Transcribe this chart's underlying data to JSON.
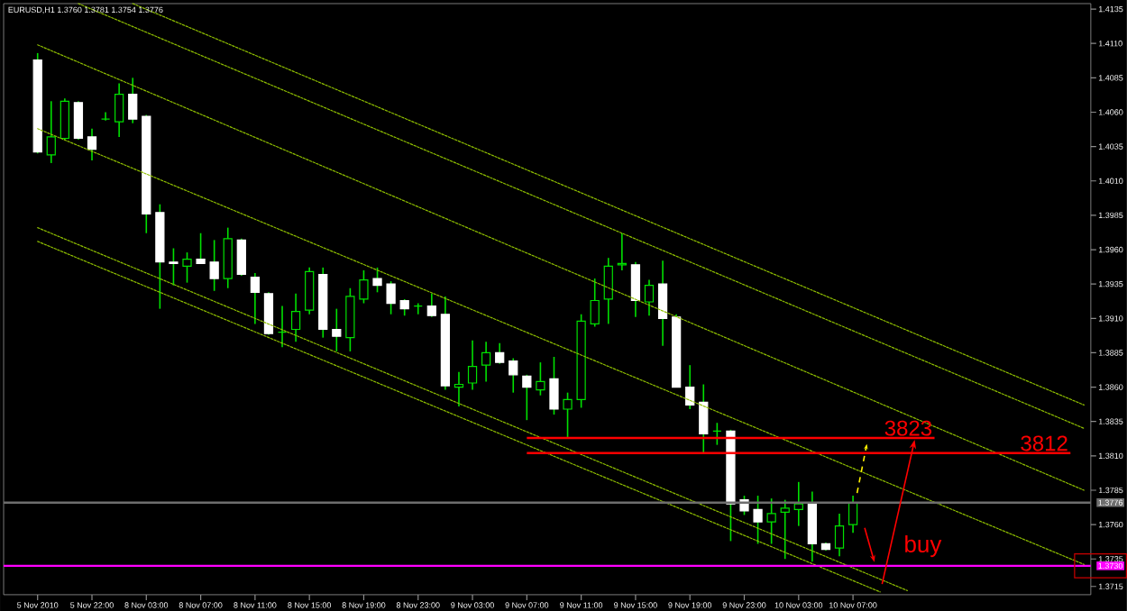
{
  "chart_data": {
    "type": "candlestick",
    "title": "EURUSD,H1 1.3760 1.3781 1.3754 1.3776",
    "categories": [
      "5 Nov 2010",
      null,
      null,
      null,
      "5 Nov 22:00",
      null,
      null,
      null,
      "8 Nov 03:00",
      null,
      null,
      null,
      "8 Nov 07:00",
      null,
      null,
      null,
      "8 Nov 11:00",
      null,
      null,
      null,
      "8 Nov 15:00",
      null,
      null,
      null,
      "8 Nov 19:00",
      null,
      null,
      null,
      "8 Nov 23:00",
      null,
      null,
      null,
      "9 Nov 03:00",
      null,
      null,
      null,
      "9 Nov 07:00",
      null,
      null,
      null,
      "9 Nov 11:00",
      null,
      null,
      null,
      "9 Nov 15:00",
      null,
      null,
      null,
      "9 Nov 19:00",
      null,
      null,
      null,
      "9 Nov 23:00",
      null,
      null,
      null,
      "10 Nov 03:00",
      null,
      null,
      null,
      "10 Nov 07:00",
      null,
      null,
      null,
      null,
      null,
      null,
      null,
      null,
      null,
      null,
      null,
      null,
      null,
      null,
      null,
      null,
      null
    ],
    "ohlc": [
      [
        1.4098,
        1.4103,
        1.403,
        1.4031
      ],
      [
        1.4029,
        1.4068,
        1.4023,
        1.4042
      ],
      [
        1.4041,
        1.407,
        1.404,
        1.4068
      ],
      [
        1.4067,
        1.4068,
        1.404,
        1.4041
      ],
      [
        1.4042,
        1.4048,
        1.4025,
        1.4033
      ],
      [
        1.4055,
        1.406,
        1.4054,
        1.4055
      ],
      [
        1.4053,
        1.4081,
        1.4042,
        1.4073
      ],
      [
        1.4073,
        1.4085,
        1.4052,
        1.4055
      ],
      [
        1.4057,
        1.4058,
        1.3972,
        1.3986
      ],
      [
        1.3987,
        1.3993,
        1.3917,
        1.3951
      ],
      [
        1.3951,
        1.3961,
        1.3934,
        1.395
      ],
      [
        1.3948,
        1.3958,
        1.3936,
        1.3953
      ],
      [
        1.3953,
        1.3972,
        1.395,
        1.395
      ],
      [
        1.3951,
        1.3967,
        1.393,
        1.3939
      ],
      [
        1.3939,
        1.3976,
        1.3932,
        1.3968
      ],
      [
        1.3967,
        1.3968,
        1.3941,
        1.3942
      ],
      [
        1.394,
        1.3943,
        1.3906,
        1.3929
      ],
      [
        1.3928,
        1.3929,
        1.3898,
        1.3899
      ],
      [
        1.39,
        1.3919,
        1.3889,
        1.39
      ],
      [
        1.3902,
        1.3928,
        1.3893,
        1.3915
      ],
      [
        1.3916,
        1.3947,
        1.3913,
        1.3944
      ],
      [
        1.3942,
        1.3947,
        1.3896,
        1.3902
      ],
      [
        1.3902,
        1.3917,
        1.3886,
        1.3897
      ],
      [
        1.3896,
        1.3932,
        1.3886,
        1.3926
      ],
      [
        1.3924,
        1.3945,
        1.3921,
        1.3938
      ],
      [
        1.3939,
        1.3947,
        1.3929,
        1.3934
      ],
      [
        1.3935,
        1.3937,
        1.3913,
        1.3921
      ],
      [
        1.3923,
        1.3924,
        1.3912,
        1.3917
      ],
      [
        1.3919,
        1.3921,
        1.3913,
        1.3919
      ],
      [
        1.3919,
        1.3928,
        1.3911,
        1.3912
      ],
      [
        1.3913,
        1.3926,
        1.3858,
        1.3861
      ],
      [
        1.386,
        1.3871,
        1.3846,
        1.3862
      ],
      [
        1.3863,
        1.3894,
        1.3858,
        1.3875
      ],
      [
        1.3876,
        1.3893,
        1.3864,
        1.3885
      ],
      [
        1.3885,
        1.3892,
        1.3877,
        1.3878
      ],
      [
        1.3879,
        1.3881,
        1.3856,
        1.3869
      ],
      [
        1.3868,
        1.3869,
        1.3836,
        1.386
      ],
      [
        1.3858,
        1.3878,
        1.3854,
        1.3864
      ],
      [
        1.3866,
        1.3882,
        1.384,
        1.3844
      ],
      [
        1.3844,
        1.3856,
        1.3823,
        1.3851
      ],
      [
        1.3851,
        1.3913,
        1.3845,
        1.3908
      ],
      [
        1.3906,
        1.3939,
        1.3904,
        1.3923
      ],
      [
        1.3924,
        1.3954,
        1.3906,
        1.3948
      ],
      [
        1.3949,
        1.3972,
        1.3945,
        1.395
      ],
      [
        1.3949,
        1.3951,
        1.3911,
        1.3923
      ],
      [
        1.3922,
        1.3938,
        1.3912,
        1.3934
      ],
      [
        1.3935,
        1.3952,
        1.389,
        1.391
      ],
      [
        1.3911,
        1.3913,
        1.386,
        1.386
      ],
      [
        1.386,
        1.3876,
        1.3844,
        1.3847
      ],
      [
        1.3849,
        1.3862,
        1.3812,
        1.3826
      ],
      [
        1.3828,
        1.3834,
        1.3818,
        1.3828
      ],
      [
        1.3828,
        1.3829,
        1.3748,
        1.3775
      ],
      [
        1.3778,
        1.3781,
        1.3767,
        1.377
      ],
      [
        1.3771,
        1.3781,
        1.3746,
        1.3762
      ],
      [
        1.3762,
        1.3779,
        1.3746,
        1.3768
      ],
      [
        1.3769,
        1.3778,
        1.3735,
        1.3772
      ],
      [
        1.3771,
        1.3791,
        1.3759,
        1.3775
      ],
      [
        1.3775,
        1.3784,
        1.3733,
        1.3746
      ],
      [
        1.3746,
        1.3747,
        1.3741,
        1.3742
      ],
      [
        1.3743,
        1.3768,
        1.3737,
        1.3759
      ],
      [
        1.376,
        1.3781,
        1.3754,
        1.3776
      ],
      null,
      null,
      null,
      null,
      null,
      null,
      null,
      null,
      null,
      null,
      null,
      null,
      null,
      null,
      null,
      null,
      null
    ],
    "series": [
      {
        "type": "line",
        "color": "#8fbf00",
        "line_style": "dotted",
        "values": [
          null,
          null,
          null,
          null,
          null,
          null,
          null,
          1.4139,
          null,
          null,
          null,
          null,
          null,
          null,
          null,
          null,
          null,
          null,
          null,
          null,
          null,
          null,
          null,
          null,
          null,
          null,
          null,
          null,
          null,
          null,
          null,
          null,
          null,
          null,
          null,
          null,
          null,
          null,
          null,
          null,
          null,
          null,
          null,
          null,
          null,
          null,
          null,
          null,
          null,
          null,
          null,
          null,
          null,
          null,
          null,
          null,
          null,
          null,
          null,
          null,
          null,
          null,
          null,
          null,
          null,
          null,
          null,
          null,
          null,
          null,
          null,
          null,
          null,
          null,
          null,
          null,
          null,
          1.3847
        ]
      },
      {
        "type": "line",
        "color": "#8fbf00",
        "line_style": "dotted",
        "values": [
          null,
          null,
          null,
          1.4139,
          null,
          null,
          null,
          null,
          null,
          null,
          null,
          null,
          null,
          null,
          null,
          null,
          null,
          null,
          null,
          null,
          null,
          null,
          null,
          null,
          null,
          null,
          null,
          null,
          null,
          null,
          null,
          null,
          null,
          null,
          null,
          null,
          null,
          null,
          null,
          null,
          null,
          null,
          null,
          null,
          null,
          null,
          null,
          null,
          null,
          null,
          null,
          null,
          null,
          null,
          null,
          null,
          null,
          null,
          null,
          null,
          null,
          null,
          null,
          null,
          null,
          null,
          null,
          null,
          null,
          null,
          null,
          null,
          null,
          null,
          null,
          null,
          null,
          1.383
        ]
      },
      {
        "type": "line",
        "color": "#8fbf00",
        "line_style": "dotted",
        "values": [
          1.4109,
          null,
          null,
          null,
          null,
          null,
          null,
          null,
          null,
          null,
          null,
          null,
          null,
          null,
          null,
          null,
          null,
          null,
          null,
          null,
          null,
          null,
          null,
          null,
          null,
          null,
          null,
          null,
          null,
          null,
          null,
          null,
          null,
          null,
          null,
          null,
          null,
          null,
          null,
          null,
          null,
          null,
          null,
          null,
          null,
          null,
          null,
          null,
          null,
          null,
          null,
          null,
          null,
          null,
          null,
          null,
          null,
          null,
          null,
          null,
          null,
          null,
          null,
          null,
          null,
          null,
          null,
          null,
          null,
          null,
          null,
          null,
          null,
          null,
          null,
          null,
          null,
          1.3785
        ]
      },
      {
        "type": "line",
        "color": "#8fbf00",
        "line_style": "dotted",
        "values": [
          1.4048,
          null,
          null,
          null,
          null,
          null,
          null,
          null,
          null,
          null,
          null,
          null,
          null,
          null,
          null,
          null,
          null,
          null,
          null,
          null,
          null,
          null,
          null,
          null,
          null,
          null,
          null,
          null,
          null,
          null,
          null,
          null,
          null,
          null,
          null,
          null,
          null,
          null,
          null,
          null,
          null,
          null,
          null,
          null,
          null,
          null,
          null,
          null,
          null,
          null,
          null,
          null,
          null,
          null,
          null,
          null,
          null,
          null,
          null,
          null,
          null,
          null,
          null,
          null,
          null,
          null,
          null,
          null,
          null,
          null,
          null,
          null,
          null,
          null,
          null,
          null,
          null,
          1.3731
        ]
      },
      {
        "type": "line",
        "color": "#8fbf00",
        "line_style": "dotted",
        "values": [
          1.3976,
          null,
          null,
          null,
          null,
          null,
          null,
          null,
          null,
          null,
          null,
          null,
          null,
          null,
          null,
          null,
          null,
          null,
          null,
          null,
          null,
          null,
          null,
          null,
          null,
          null,
          null,
          null,
          null,
          null,
          null,
          null,
          null,
          null,
          null,
          null,
          null,
          null,
          null,
          null,
          null,
          null,
          null,
          null,
          null,
          null,
          null,
          null,
          null,
          null,
          null,
          null,
          null,
          null,
          null,
          null,
          null,
          null,
          null,
          null,
          null,
          null,
          null,
          null,
          1.3712,
          null,
          null,
          null,
          null,
          null,
          null,
          null,
          null,
          null,
          null,
          null,
          null,
          null
        ]
      },
      {
        "type": "line",
        "color": "#8fbf00",
        "line_style": "dotted",
        "values": [
          1.3966,
          null,
          null,
          null,
          null,
          null,
          null,
          null,
          null,
          null,
          null,
          null,
          null,
          null,
          null,
          null,
          null,
          null,
          null,
          null,
          null,
          null,
          null,
          null,
          null,
          null,
          null,
          null,
          null,
          null,
          null,
          null,
          null,
          null,
          null,
          null,
          null,
          null,
          null,
          null,
          null,
          null,
          null,
          null,
          null,
          null,
          null,
          null,
          null,
          null,
          null,
          null,
          null,
          null,
          null,
          null,
          null,
          null,
          null,
          null,
          null,
          null,
          1.3711,
          null,
          null,
          null,
          null,
          null,
          null,
          null,
          null,
          null,
          null,
          null,
          null,
          null,
          null,
          null
        ]
      },
      {
        "type": "line",
        "name": "3823",
        "color": "#ff0000",
        "line_style": "solid",
        "values": [
          null,
          null,
          null,
          null,
          null,
          null,
          null,
          null,
          null,
          null,
          null,
          null,
          null,
          null,
          null,
          null,
          null,
          null,
          null,
          null,
          null,
          null,
          null,
          null,
          null,
          null,
          null,
          null,
          null,
          null,
          null,
          null,
          null,
          null,
          null,
          null,
          1.3823,
          null,
          null,
          null,
          null,
          null,
          null,
          null,
          null,
          null,
          null,
          null,
          null,
          null,
          null,
          null,
          null,
          null,
          null,
          null,
          null,
          null,
          null,
          null,
          null,
          null,
          null,
          null,
          null,
          null,
          1.3823,
          null,
          null,
          null,
          null,
          null,
          null,
          null,
          null,
          null,
          null,
          null
        ]
      },
      {
        "type": "line",
        "name": "3812",
        "color": "#ff0000",
        "line_style": "solid",
        "values": [
          null,
          null,
          null,
          null,
          null,
          null,
          null,
          null,
          null,
          null,
          null,
          null,
          null,
          null,
          null,
          null,
          null,
          null,
          null,
          null,
          null,
          null,
          null,
          null,
          null,
          null,
          null,
          null,
          null,
          null,
          null,
          null,
          null,
          null,
          null,
          null,
          1.3812,
          null,
          null,
          null,
          null,
          null,
          null,
          null,
          null,
          null,
          null,
          null,
          null,
          null,
          null,
          null,
          null,
          null,
          null,
          null,
          null,
          null,
          null,
          null,
          null,
          null,
          null,
          null,
          null,
          null,
          null,
          null,
          null,
          null,
          null,
          null,
          null,
          null,
          null,
          null,
          1.3812,
          null
        ]
      }
    ],
    "ylim": [
      1.3709,
      1.4139
    ],
    "yticks": [
      {
        "value": 1.4135,
        "label": "1.4135"
      },
      {
        "value": 1.411,
        "label": "1.4110"
      },
      {
        "value": 1.4085,
        "label": "1.4085"
      },
      {
        "value": 1.406,
        "label": "1.4060"
      },
      {
        "value": 1.4035,
        "label": "1.4035"
      },
      {
        "value": 1.401,
        "label": "1.4010"
      },
      {
        "value": 1.3985,
        "label": "1.3985"
      },
      {
        "value": 1.396,
        "label": "1.3960"
      },
      {
        "value": 1.3935,
        "label": "1.3935"
      },
      {
        "value": 1.391,
        "label": "1.3910"
      },
      {
        "value": 1.3885,
        "label": "1.3885"
      },
      {
        "value": 1.386,
        "label": "1.3860"
      },
      {
        "value": 1.3835,
        "label": "1.3835"
      },
      {
        "value": 1.381,
        "label": "1.3810"
      },
      {
        "value": 1.3785,
        "label": "1.3785"
      },
      {
        "value": 1.376,
        "label": "1.3760"
      },
      {
        "value": 1.3735,
        "label": "1.3735"
      },
      {
        "value": 1.3715,
        "label": "1.3715"
      }
    ],
    "ref_lines": [
      {
        "axis": "y",
        "value": 1.3776,
        "label": "1.3776",
        "color": "#6e6e6e"
      },
      {
        "axis": "y",
        "value": 1.373,
        "label": "1.3730",
        "color": "#ff00ff"
      }
    ],
    "annotations": [
      "buy"
    ],
    "grid": false
  }
}
